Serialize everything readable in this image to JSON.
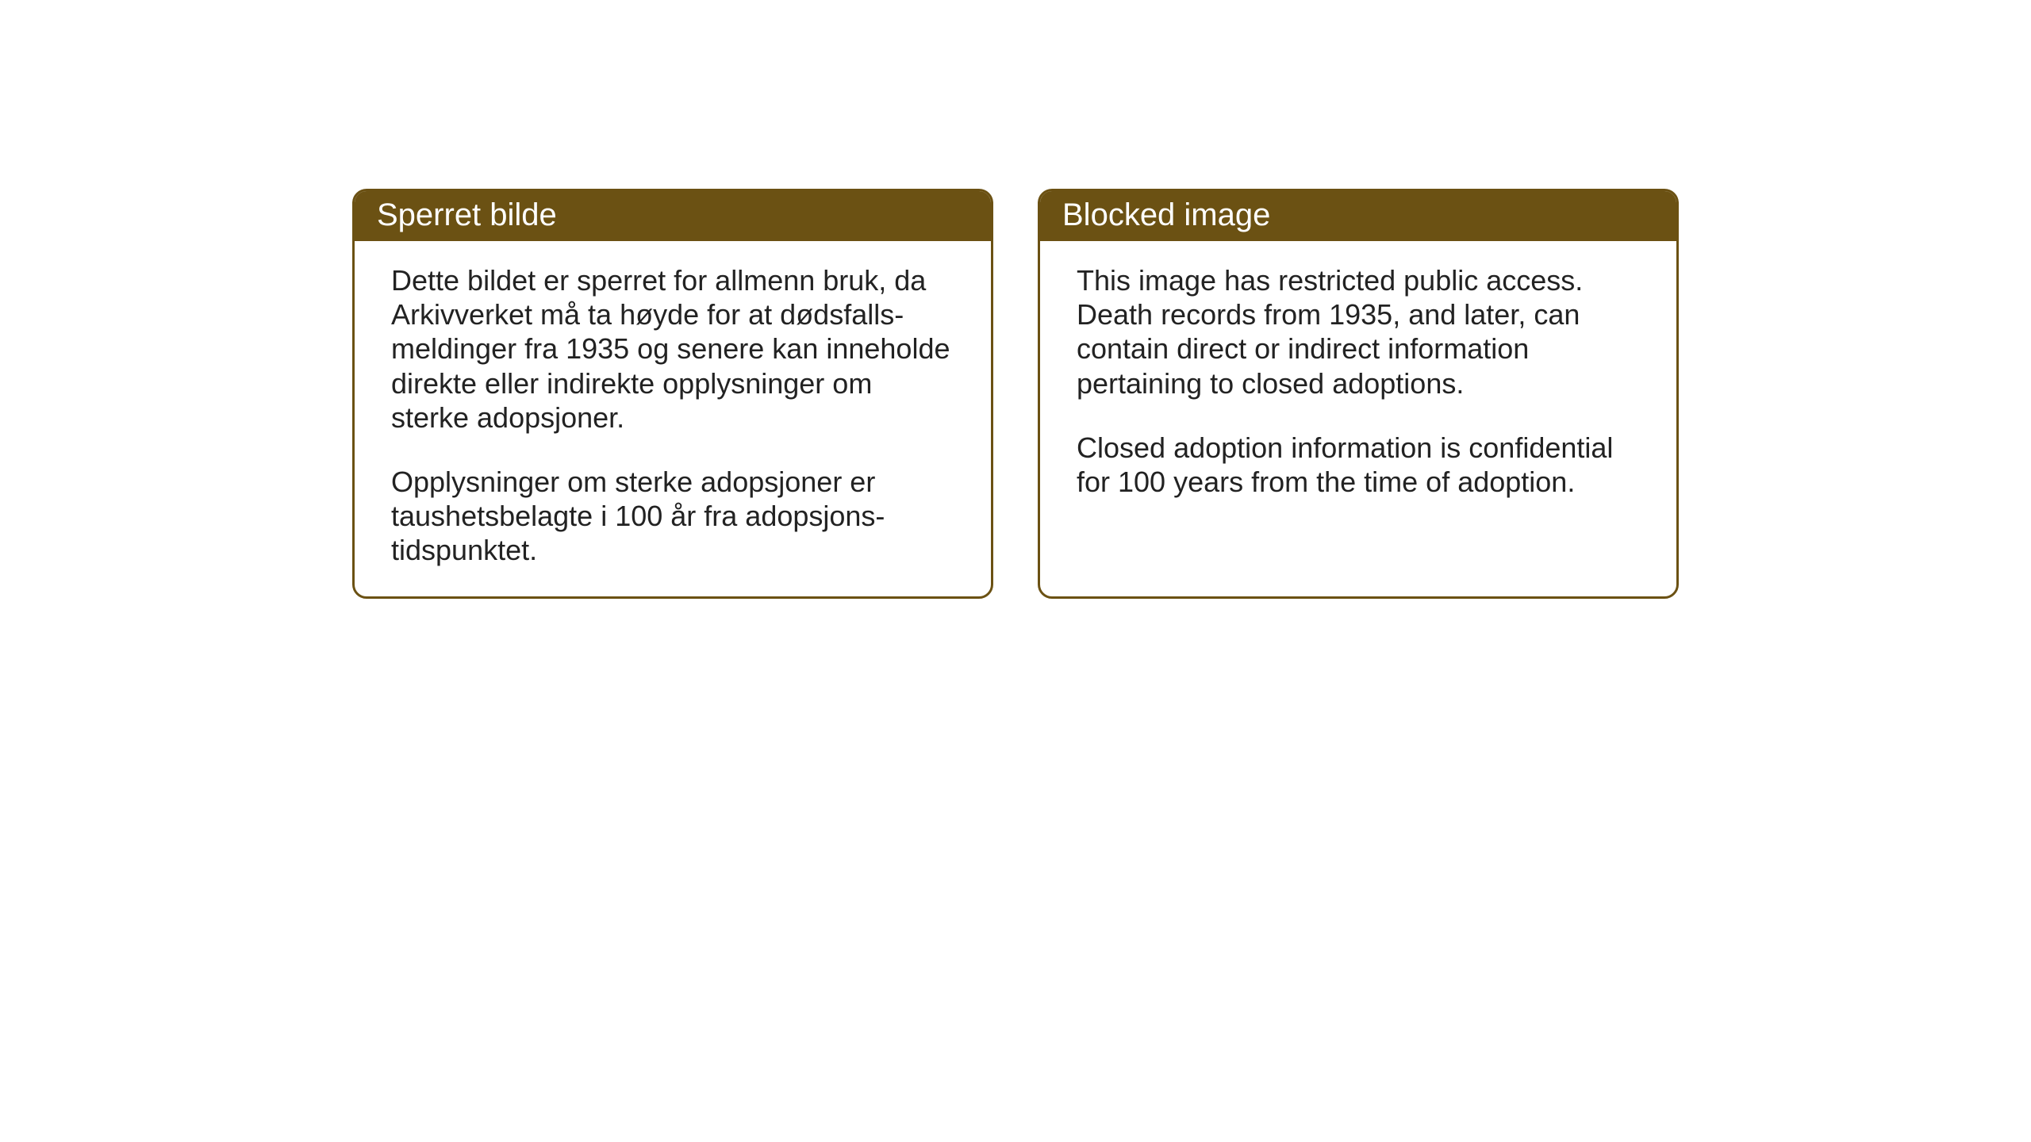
{
  "cards": {
    "norwegian": {
      "title": "Sperret bilde",
      "paragraph1": "Dette bildet er sperret for allmenn bruk, da Arkivverket må ta høyde for at dødsfalls-meldinger fra 1935 og senere kan inneholde direkte eller indirekte opplysninger om sterke adopsjoner.",
      "paragraph2": "Opplysninger om sterke adopsjoner er taushetsbelagte i 100 år fra adopsjons-tidspunktet."
    },
    "english": {
      "title": "Blocked image",
      "paragraph1": "This image has restricted public access. Death records from 1935, and later, can contain direct or indirect information pertaining to closed adoptions.",
      "paragraph2": "Closed adoption information is confidential for 100 years from the time of adoption."
    }
  },
  "style": {
    "header_bg_color": "#6b5113",
    "border_color": "#6b5113",
    "header_text_color": "#ffffff",
    "body_text_color": "#222222",
    "background_color": "#ffffff",
    "title_fontsize": 40,
    "body_fontsize": 36,
    "border_radius": 18,
    "border_width": 3
  }
}
